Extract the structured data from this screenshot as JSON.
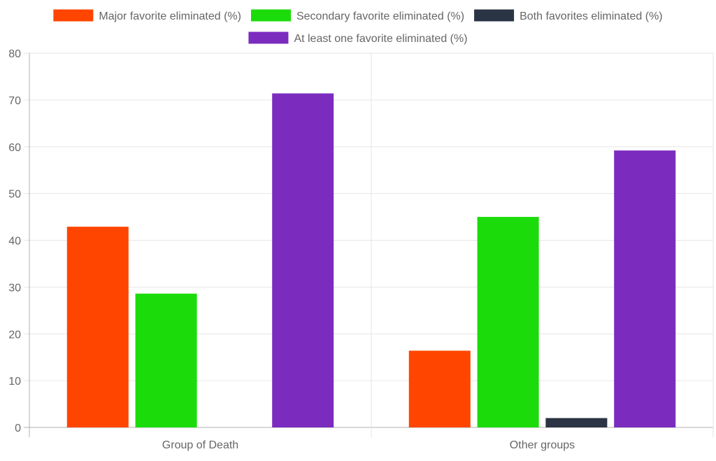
{
  "chart_data": {
    "type": "bar",
    "categories": [
      "Group of Death",
      "Other groups"
    ],
    "series": [
      {
        "name": "Major favorite eliminated (%)",
        "color": "#ff4500",
        "values": [
          42.9,
          16.4
        ]
      },
      {
        "name": "Secondary favorite eliminated (%)",
        "color": "#1bdc0a",
        "values": [
          28.6,
          45.0
        ]
      },
      {
        "name": "Both favorites eliminated (%)",
        "color": "#2b3444",
        "values": [
          0,
          2.0
        ]
      },
      {
        "name": "At least one favorite eliminated (%)",
        "color": "#7b2cbf",
        "values": [
          71.4,
          59.2
        ]
      }
    ],
    "yticks": [
      "0",
      "10",
      "20",
      "30",
      "40",
      "50",
      "60",
      "70",
      "80"
    ],
    "ylim": [
      0,
      80
    ],
    "grid": true,
    "legend_position": "top"
  }
}
